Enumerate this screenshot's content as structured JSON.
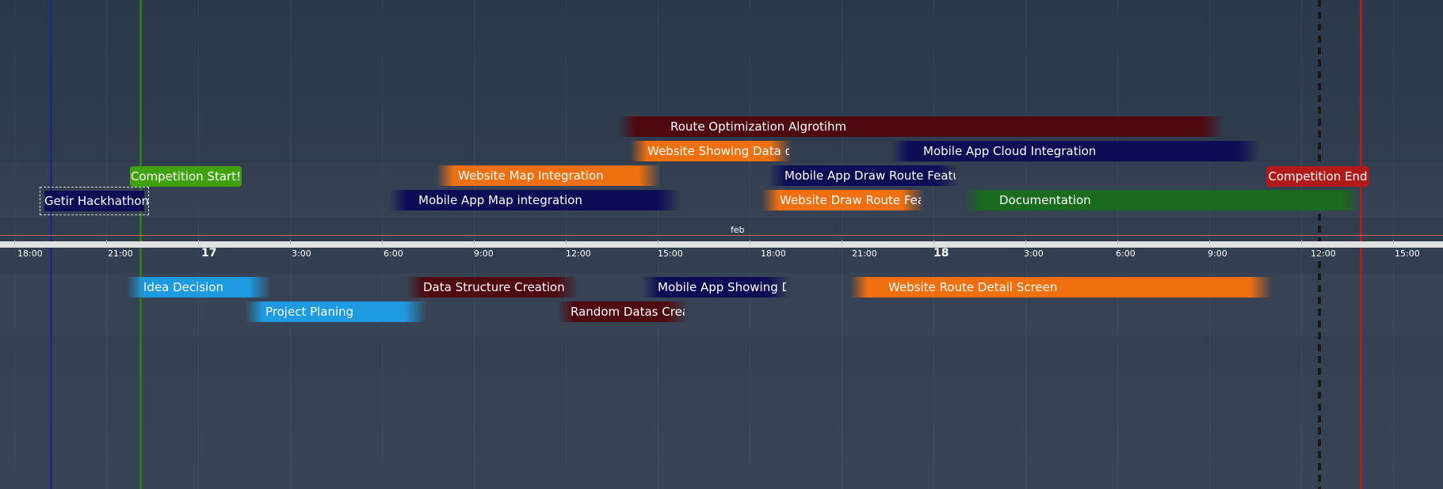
{
  "timeline": {
    "month_label": "feb",
    "time_labels": [
      {
        "text": "18:00",
        "major": false
      },
      {
        "text": "21:00",
        "major": false
      },
      {
        "text": "17",
        "major": true
      },
      {
        "text": "3:00",
        "major": false
      },
      {
        "text": "6:00",
        "major": false
      },
      {
        "text": "9:00",
        "major": false
      },
      {
        "text": "12:00",
        "major": false
      },
      {
        "text": "15:00",
        "major": false
      },
      {
        "text": "18:00",
        "major": false
      },
      {
        "text": "21:00",
        "major": false
      },
      {
        "text": "18",
        "major": true
      },
      {
        "text": "3:00",
        "major": false
      },
      {
        "text": "6:00",
        "major": false
      },
      {
        "text": "9:00",
        "major": false
      },
      {
        "text": "12:00",
        "major": false
      },
      {
        "text": "15:00",
        "major": false
      }
    ],
    "markers": [
      {
        "name": "hackathon-marker",
        "color": "#1e2b7a"
      },
      {
        "name": "start-marker",
        "color": "#2c7a1e"
      },
      {
        "name": "current-time-marker",
        "color": "#1a1a1a"
      },
      {
        "name": "end-marker",
        "color": "#b21e1e"
      }
    ],
    "items": [
      {
        "name": "route-optimization",
        "label": "Route Optimization Algrotihm",
        "color": "#4e0a10"
      },
      {
        "name": "website-showing-data",
        "label": "Website Showing Data of",
        "color": "#f07010"
      },
      {
        "name": "mobile-cloud",
        "label": "Mobile App Cloud Integration",
        "color": "#0d0d55"
      },
      {
        "name": "competition-start",
        "label": "Competition Start!",
        "color": "#3fa10d"
      },
      {
        "name": "website-map",
        "label": "Website Map Integration",
        "color": "#f07010"
      },
      {
        "name": "mobile-draw-route",
        "label": "Mobile App Draw Route Featu",
        "color": "#0d0d55"
      },
      {
        "name": "competition-end",
        "label": "Competition End",
        "color": "#b21a1a"
      },
      {
        "name": "getir-hackathon",
        "label": "Getir Hackhathon",
        "color": "#0d0d55"
      },
      {
        "name": "mobile-map",
        "label": "Mobile App Map integration",
        "color": "#0d0d55"
      },
      {
        "name": "website-draw-route",
        "label": "Website Draw Route Fea",
        "color": "#f07010"
      },
      {
        "name": "documentation",
        "label": "Documentation",
        "color": "#1b6b1e"
      },
      {
        "name": "idea-decision",
        "label": "Idea Decision",
        "color": "#1e9be0"
      },
      {
        "name": "data-structure",
        "label": "Data Structure Creation",
        "color": "#4e0a10"
      },
      {
        "name": "mobile-showing-data",
        "label": "Mobile App Showing D",
        "color": "#0d0d55"
      },
      {
        "name": "website-route-detail",
        "label": "Website Route Detail Screen",
        "color": "#f07010"
      },
      {
        "name": "project-planing",
        "label": "Project Planing",
        "color": "#1e9be0"
      },
      {
        "name": "random-datas",
        "label": "Random Datas Crea",
        "color": "#4e0a10"
      }
    ]
  }
}
